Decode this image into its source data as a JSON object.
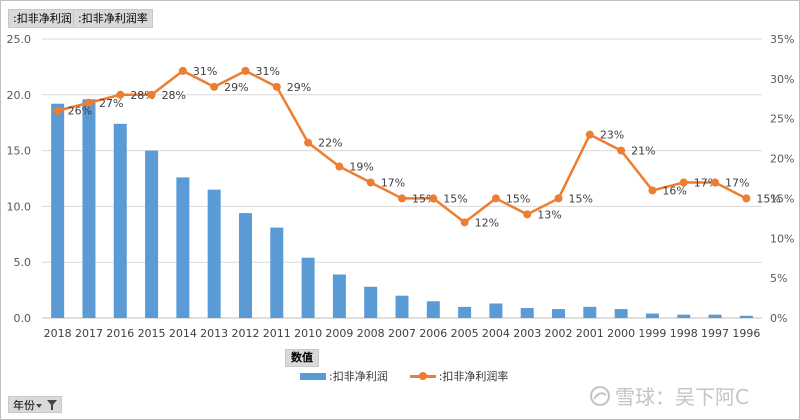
{
  "field_buttons": [
    ":扣非净利润",
    ":扣非净利润率"
  ],
  "values_button": "数值",
  "row_field_button": "年份",
  "watermark": "雪球：吴下阿C",
  "colors": {
    "bar": "#5b9bd5",
    "line": "#ed7d31",
    "grid": "#d9d9d9",
    "axis_text": "#595959"
  },
  "chart_data": {
    "type": "bar+line",
    "categories": [
      "2018",
      "2017",
      "2016",
      "2015",
      "2014",
      "2013",
      "2012",
      "2011",
      "2010",
      "2009",
      "2008",
      "2007",
      "2006",
      "2005",
      "2004",
      "2003",
      "2002",
      "2001",
      "2000",
      "1999",
      "1998",
      "1997",
      "1996"
    ],
    "series": [
      {
        "name": ":扣非净利润",
        "type": "bar",
        "axis": "left",
        "values": [
          19.2,
          19.6,
          17.4,
          15.0,
          12.6,
          11.5,
          9.4,
          8.1,
          5.4,
          3.9,
          2.8,
          2.0,
          1.5,
          1.0,
          1.3,
          0.9,
          0.8,
          1.0,
          0.8,
          0.4,
          0.3,
          0.3,
          0.2
        ]
      },
      {
        "name": ":扣非净利润率",
        "type": "line",
        "axis": "right",
        "values": [
          26,
          27,
          28,
          28,
          31,
          29,
          31,
          29,
          22,
          19,
          17,
          15,
          15,
          12,
          15,
          13,
          15,
          23,
          21,
          16,
          17,
          17,
          15
        ],
        "labels": [
          "26%",
          "27%",
          "28%",
          "28%",
          "31%",
          "29%",
          "31%",
          "29%",
          "22%",
          "19%",
          "17%",
          "15%",
          "15%",
          "12%",
          "15%",
          "13%",
          "15%",
          "23%",
          "21%",
          "16%",
          "17%",
          "17%",
          "15%"
        ]
      }
    ],
    "y_left": {
      "ylim": [
        0,
        25
      ],
      "ticks": [
        "0.0",
        "5.0",
        "10.0",
        "15.0",
        "20.0",
        "25.0"
      ]
    },
    "y_right": {
      "ylim": [
        0,
        35
      ],
      "ticks": [
        "0%",
        "5%",
        "10%",
        "15%",
        "20%",
        "25%",
        "30%",
        "35%"
      ]
    },
    "grid": true,
    "legend_position": "bottom"
  }
}
